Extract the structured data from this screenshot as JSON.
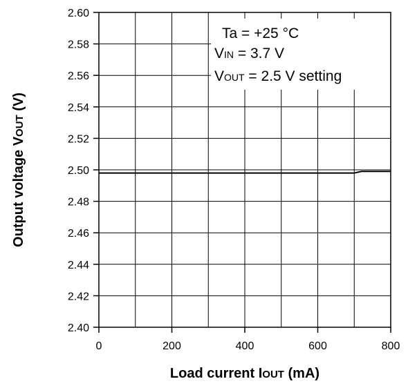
{
  "chart_data": {
    "type": "line",
    "xlabel_main": "Load current I",
    "xlabel_sub": "OUT",
    "xlabel_unit": " (mA)",
    "ylabel_main": "Output voltage V",
    "ylabel_sub": "OUT",
    "ylabel_unit": " (V)",
    "xlim": [
      0,
      800
    ],
    "ylim": [
      2.4,
      2.6
    ],
    "x_ticks": [
      "0",
      "200",
      "400",
      "600",
      "800"
    ],
    "y_ticks": [
      "2.40",
      "2.42",
      "2.44",
      "2.46",
      "2.48",
      "2.50",
      "2.52",
      "2.54",
      "2.56",
      "2.58",
      "2.60"
    ],
    "grid": true,
    "annotations": {
      "line1": "Ta = +25 °C",
      "line2_main": "V",
      "line2_sub": "IN",
      "line2_rest": " = 3.7 V",
      "line3_main": "V",
      "line3_sub": "OUT",
      "line3_rest": " = 2.5 V setting"
    },
    "series": [
      {
        "x": [
          0,
          100,
          200,
          300,
          400,
          500,
          600,
          700,
          720,
          800
        ],
        "y": [
          2.498,
          2.498,
          2.498,
          2.498,
          2.498,
          2.498,
          2.498,
          2.498,
          2.499,
          2.499
        ]
      }
    ]
  }
}
